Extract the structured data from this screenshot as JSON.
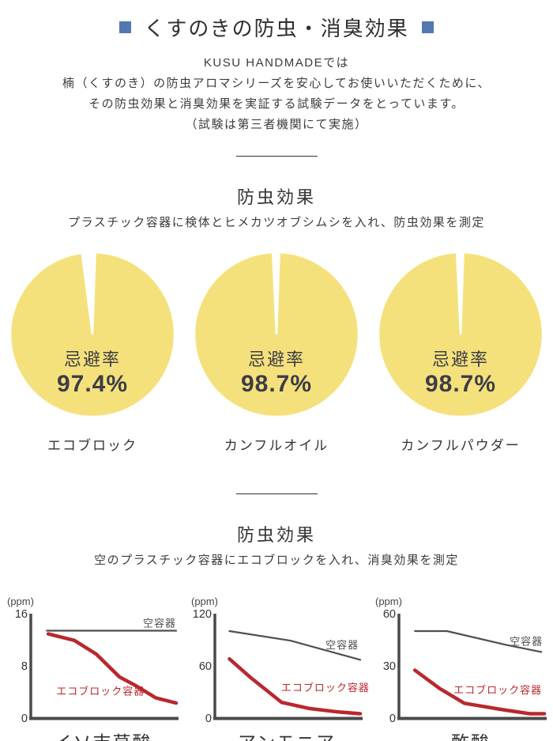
{
  "page": {
    "accent_blue": "#5377b1",
    "pie_yellow": "#f5e17c",
    "line_red": "#b9282e",
    "line_gray": "#4f4f4f",
    "axis_color": "#4a4a4a"
  },
  "header": {
    "title": "くすのきの防虫・消臭効果",
    "intro_lines": [
      "KUSU HANDMADEでは",
      "楠（くすのき）の防虫アロマシリーズを安心してお使いいただくために、",
      "その防虫効果と消臭効果を実証する試験データをとっています。",
      "（試験は第三者機関にて実施）"
    ]
  },
  "section1": {
    "heading": "防虫効果",
    "subtitle": "プラスチック容器に検体とヒメカツオブシムシを入れ、防虫効果を測定"
  },
  "section2": {
    "heading": "防虫効果",
    "subtitle": "空のプラスチック容器にエコブロックを入れ、消臭効果を測定"
  },
  "chart_data": [
    {
      "type": "pie",
      "title": "エコブロック",
      "center_label": "忌避率",
      "value": 97.4,
      "value_label": "97.4%",
      "color": "#f5e17c"
    },
    {
      "type": "pie",
      "title": "カンフルオイル",
      "center_label": "忌避率",
      "value": 98.7,
      "value_label": "98.7%",
      "color": "#f5e17c"
    },
    {
      "type": "pie",
      "title": "カンフルパウダー",
      "center_label": "忌避率",
      "value": 98.7,
      "value_label": "98.7%",
      "color": "#f5e17c"
    },
    {
      "type": "line",
      "title": "イソ吉草酸",
      "ylabel": "(ppm)",
      "ymax": 16,
      "yticks": [
        16,
        8,
        0
      ],
      "series": [
        {
          "name": "空容器",
          "color": "#4f4f4f",
          "width": 2.2,
          "points": [
            [
              0.11,
              13.4
            ],
            [
              1.0,
              13.4
            ]
          ],
          "label": {
            "x": 1.0,
            "ppm": 14.0,
            "anchor": "end"
          }
        },
        {
          "name": "エコブロック容器",
          "color": "#b9282e",
          "width": 4.5,
          "points": [
            [
              0.12,
              12.9
            ],
            [
              0.3,
              11.9
            ],
            [
              0.45,
              9.8
            ],
            [
              0.61,
              6.3
            ],
            [
              0.72,
              5.0
            ],
            [
              0.86,
              3.1
            ],
            [
              1.0,
              2.3
            ]
          ],
          "label": {
            "x": 0.48,
            "ppm": 3.6,
            "anchor": "middle"
          }
        }
      ]
    },
    {
      "type": "line",
      "title": "アンモニア",
      "ylabel": "(ppm)",
      "ymax": 120,
      "yticks": [
        120,
        60,
        0
      ],
      "series": [
        {
          "name": "空容器",
          "color": "#4f4f4f",
          "width": 2.2,
          "points": [
            [
              0.1,
              100
            ],
            [
              0.52,
              89
            ],
            [
              1.0,
              67
            ]
          ],
          "label": {
            "x": 0.99,
            "ppm": 80,
            "anchor": "end"
          }
        },
        {
          "name": "エコブロック容器",
          "color": "#b9282e",
          "width": 4.5,
          "points": [
            [
              0.1,
              68
            ],
            [
              0.25,
              46
            ],
            [
              0.46,
              18
            ],
            [
              0.65,
              11
            ],
            [
              0.85,
              7
            ],
            [
              1.0,
              5
            ]
          ],
          "label": {
            "x": 0.76,
            "ppm": 31,
            "anchor": "middle"
          }
        }
      ]
    },
    {
      "type": "line",
      "title": "酢酸",
      "ylabel": "(ppm)",
      "ymax": 60,
      "yticks": [
        60,
        30,
        0
      ],
      "series": [
        {
          "name": "空容器",
          "color": "#4f4f4f",
          "width": 2.2,
          "points": [
            [
              0.11,
              50
            ],
            [
              0.33,
              50
            ],
            [
              0.74,
              42
            ],
            [
              0.98,
              38
            ]
          ],
          "label": {
            "x": 0.99,
            "ppm": 42,
            "anchor": "end"
          }
        },
        {
          "name": "エコブロック容器",
          "color": "#b9282e",
          "width": 4.5,
          "points": [
            [
              0.11,
              27.5
            ],
            [
              0.28,
              17
            ],
            [
              0.45,
              8.5
            ],
            [
              0.7,
              5
            ],
            [
              0.9,
              2.5
            ],
            [
              1.0,
              2.5
            ]
          ],
          "label": {
            "x": 0.68,
            "ppm": 14,
            "anchor": "middle"
          }
        }
      ]
    }
  ]
}
